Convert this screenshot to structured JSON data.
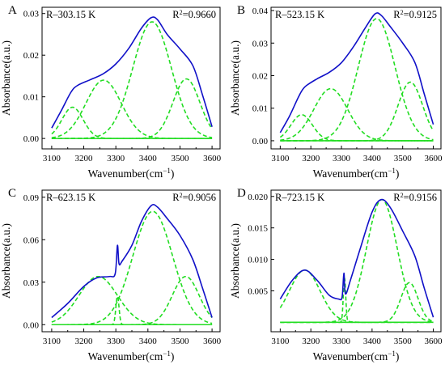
{
  "figure": {
    "colors": {
      "fit": "#1010c8",
      "components": "#22dd22",
      "baseline": "#22dd22",
      "axes": "#000000"
    }
  },
  "chart_data": [
    {
      "panel_letter": "A",
      "type": "line",
      "temperature_label": "R–303.15 K",
      "r2_label": "R",
      "r2_sup": "2",
      "r2_value": "=0.9660",
      "xlabel": "Wavenumber(cm",
      "xlabel_sup": "−1",
      "xlabel_tail": ")",
      "ylabel": "Absorbance(a.u.)",
      "xlim": [
        3070,
        3625
      ],
      "ylim": [
        -0.0025,
        0.0315
      ],
      "xticks": [
        3100,
        3200,
        3300,
        3400,
        3500,
        3600
      ],
      "yticks": [
        0.0,
        0.01,
        0.02,
        0.03
      ],
      "ytick_labels": [
        "0.00",
        "0.01",
        "0.02",
        "0.03"
      ],
      "x_range": [
        3100,
        3600
      ],
      "baseline": 0.0,
      "components": [
        {
          "center": 3165,
          "height": 0.0075,
          "width": 33
        },
        {
          "center": 3262,
          "height": 0.014,
          "width": 55
        },
        {
          "center": 3413,
          "height": 0.028,
          "width": 60
        },
        {
          "center": 3520,
          "height": 0.0143,
          "width": 42
        }
      ],
      "fit_curve": [
        [
          3100,
          0.0025
        ],
        [
          3130,
          0.0067
        ],
        [
          3160,
          0.0111
        ],
        [
          3180,
          0.0127
        ],
        [
          3220,
          0.0141
        ],
        [
          3260,
          0.0155
        ],
        [
          3300,
          0.0179
        ],
        [
          3340,
          0.0216
        ],
        [
          3380,
          0.0265
        ],
        [
          3410,
          0.029
        ],
        [
          3430,
          0.0285
        ],
        [
          3460,
          0.025
        ],
        [
          3500,
          0.0215
        ],
        [
          3540,
          0.0175
        ],
        [
          3570,
          0.0105
        ],
        [
          3600,
          0.0028
        ]
      ]
    },
    {
      "panel_letter": "B",
      "type": "line",
      "temperature_label": "R–523.15 K",
      "r2_label": "R",
      "r2_sup": "2",
      "r2_value": "=0.9125",
      "xlabel": "Wavenumber(cm",
      "xlabel_sup": "−1",
      "xlabel_tail": ")",
      "ylabel": "Absorbance(a.u.)",
      "xlim": [
        3070,
        3625
      ],
      "ylim": [
        -0.0025,
        0.041
      ],
      "xticks": [
        3100,
        3200,
        3300,
        3400,
        3500,
        3600
      ],
      "yticks": [
        0.0,
        0.01,
        0.02,
        0.03,
        0.04
      ],
      "ytick_labels": [
        "0.00",
        "0.01",
        "0.02",
        "0.03",
        "0.04"
      ],
      "x_range": [
        3100,
        3600
      ],
      "baseline": 0.0,
      "components": [
        {
          "center": 3170,
          "height": 0.008,
          "width": 35
        },
        {
          "center": 3265,
          "height": 0.016,
          "width": 55
        },
        {
          "center": 3415,
          "height": 0.0375,
          "width": 60
        },
        {
          "center": 3525,
          "height": 0.018,
          "width": 40
        }
      ],
      "fit_curve": [
        [
          3100,
          0.0025
        ],
        [
          3130,
          0.0075
        ],
        [
          3160,
          0.0135
        ],
        [
          3180,
          0.0165
        ],
        [
          3220,
          0.019
        ],
        [
          3260,
          0.021
        ],
        [
          3300,
          0.024
        ],
        [
          3340,
          0.029
        ],
        [
          3380,
          0.035
        ],
        [
          3410,
          0.039
        ],
        [
          3430,
          0.0385
        ],
        [
          3460,
          0.035
        ],
        [
          3500,
          0.03
        ],
        [
          3540,
          0.024
        ],
        [
          3570,
          0.0145
        ],
        [
          3600,
          0.005
        ]
      ]
    },
    {
      "panel_letter": "C",
      "type": "line",
      "temperature_label": "R–623.15 K",
      "r2_label": "R",
      "r2_sup": "2",
      "r2_value": "=0.9056",
      "xlabel": "Wavenumber(cm",
      "xlabel_sup": "−1",
      "xlabel_tail": ")",
      "ylabel": "Absorbance(a.u.)",
      "xlim": [
        3070,
        3625
      ],
      "ylim": [
        -0.005,
        0.095
      ],
      "xticks": [
        3100,
        3200,
        3300,
        3400,
        3500,
        3600
      ],
      "yticks": [
        0.0,
        0.03,
        0.06,
        0.09
      ],
      "ytick_labels": [
        "0.00",
        "0.03",
        "0.06",
        "0.09"
      ],
      "x_range": [
        3100,
        3600
      ],
      "baseline": 0.0,
      "components": [
        {
          "center": 3245,
          "height": 0.034,
          "width": 60
        },
        {
          "center": 3305,
          "height": 0.02,
          "width": 5
        },
        {
          "center": 3415,
          "height": 0.08,
          "width": 62
        },
        {
          "center": 3518,
          "height": 0.034,
          "width": 42
        }
      ],
      "fit_curve": [
        [
          3100,
          0.005
        ],
        [
          3150,
          0.015
        ],
        [
          3200,
          0.027
        ],
        [
          3240,
          0.033
        ],
        [
          3280,
          0.034
        ],
        [
          3298,
          0.036
        ],
        [
          3305,
          0.056
        ],
        [
          3310,
          0.043
        ],
        [
          3320,
          0.045
        ],
        [
          3350,
          0.056
        ],
        [
          3380,
          0.073
        ],
        [
          3410,
          0.084
        ],
        [
          3430,
          0.083
        ],
        [
          3460,
          0.075
        ],
        [
          3500,
          0.063
        ],
        [
          3540,
          0.046
        ],
        [
          3570,
          0.026
        ],
        [
          3600,
          0.005
        ]
      ]
    },
    {
      "panel_letter": "D",
      "type": "line",
      "temperature_label": "R–723.15 K",
      "r2_label": "R",
      "r2_sup": "2",
      "r2_value": "=0.9156",
      "xlabel": "Wavenumber(cm",
      "xlabel_sup": "−1",
      "xlabel_tail": ")",
      "ylabel": "Absorbance(a.u.)",
      "xlim": [
        3070,
        3625
      ],
      "ylim": [
        -0.0015,
        0.021
      ],
      "xticks": [
        3100,
        3200,
        3300,
        3400,
        3500,
        3600
      ],
      "yticks": [
        0.005,
        0.01,
        0.015,
        0.02
      ],
      "ytick_labels": [
        "0.005",
        "0.010",
        "0.015",
        "0.020"
      ],
      "x_range": [
        3100,
        3600
      ],
      "baseline": 0.0,
      "components": [
        {
          "center": 3180,
          "height": 0.0083,
          "width": 50
        },
        {
          "center": 3310,
          "height": 0.007,
          "width": 4
        },
        {
          "center": 3432,
          "height": 0.0195,
          "width": 50
        },
        {
          "center": 3522,
          "height": 0.0063,
          "width": 28
        }
      ],
      "fit_curve": [
        [
          3100,
          0.0037
        ],
        [
          3140,
          0.0067
        ],
        [
          3180,
          0.0083
        ],
        [
          3220,
          0.0067
        ],
        [
          3260,
          0.0043
        ],
        [
          3290,
          0.0037
        ],
        [
          3302,
          0.004
        ],
        [
          3308,
          0.0078
        ],
        [
          3313,
          0.0045
        ],
        [
          3330,
          0.0068
        ],
        [
          3360,
          0.0115
        ],
        [
          3400,
          0.0175
        ],
        [
          3430,
          0.0195
        ],
        [
          3460,
          0.0182
        ],
        [
          3500,
          0.0145
        ],
        [
          3540,
          0.0105
        ],
        [
          3570,
          0.0055
        ],
        [
          3600,
          0.0008
        ]
      ]
    }
  ]
}
